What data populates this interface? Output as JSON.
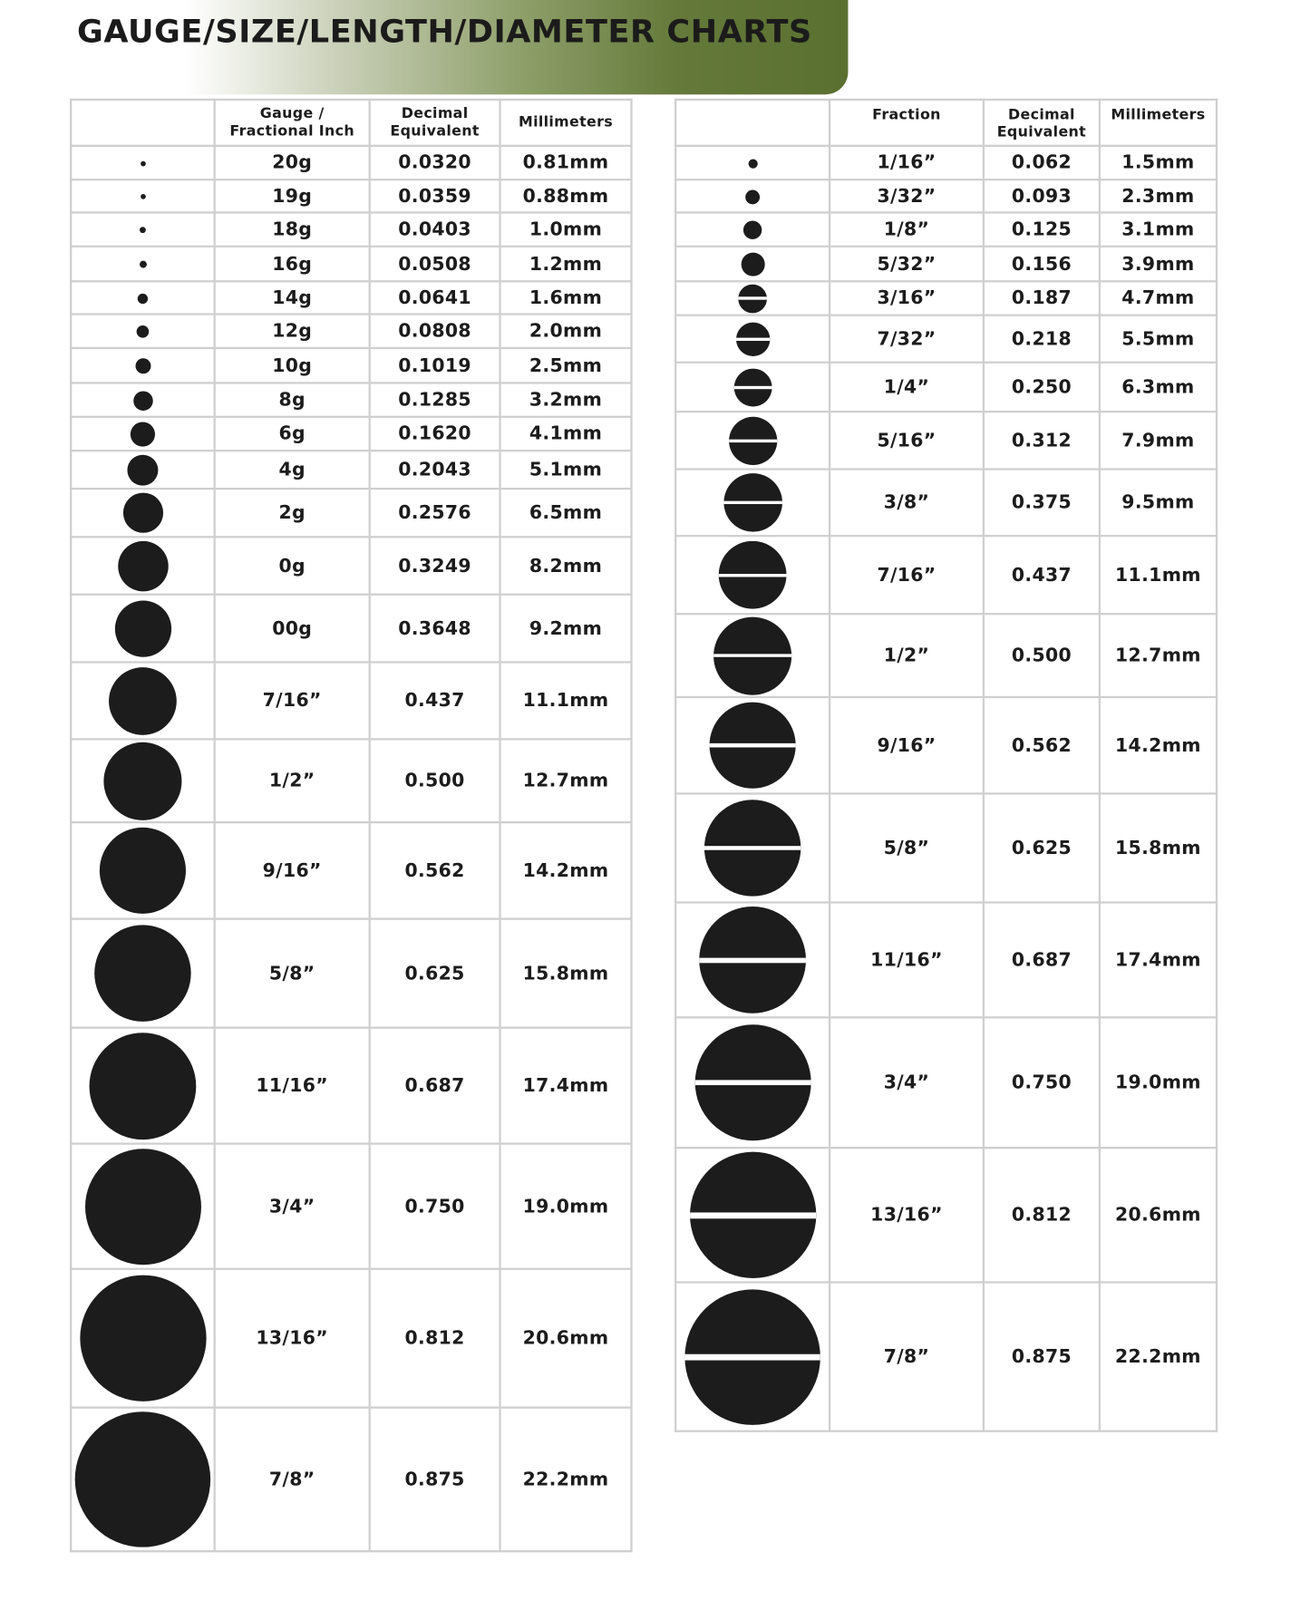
{
  "title": "GAUGE/SIZE/LENGTH/DIAMETER CHARTS",
  "colors": {
    "banner_green": "#5a7030",
    "circle": "#1c1c1c",
    "border": "#cfcfcf"
  },
  "left_table": {
    "headers": [
      "",
      "Gauge / Fractional Inch",
      "Decimal Equivalent",
      "Millimeters"
    ],
    "circle_icon": "solid-circle",
    "rows": [
      [
        "20g",
        "0.0320",
        "0.81mm"
      ],
      [
        "19g",
        "0.0359",
        "0.88mm"
      ],
      [
        "18g",
        "0.0403",
        "1.0mm"
      ],
      [
        "16g",
        "0.0508",
        "1.2mm"
      ],
      [
        "14g",
        "0.0641",
        "1.6mm"
      ],
      [
        "12g",
        "0.0808",
        "2.0mm"
      ],
      [
        "10g",
        "0.1019",
        "2.5mm"
      ],
      [
        "8g",
        "0.1285",
        "3.2mm"
      ],
      [
        "6g",
        "0.1620",
        "4.1mm"
      ],
      [
        "4g",
        "0.2043",
        "5.1mm"
      ],
      [
        "2g",
        "0.2576",
        "6.5mm"
      ],
      [
        "0g",
        "0.3249",
        "8.2mm"
      ],
      [
        "00g",
        "0.3648",
        "9.2mm"
      ],
      [
        "7/16”",
        "0.437",
        "11.1mm"
      ],
      [
        "1/2”",
        "0.500",
        "12.7mm"
      ],
      [
        "9/16”",
        "0.562",
        "14.2mm"
      ],
      [
        "5/8”",
        "0.625",
        "15.8mm"
      ],
      [
        "11/16”",
        "0.687",
        "17.4mm"
      ],
      [
        "3/4”",
        "0.750",
        "19.0mm"
      ],
      [
        "13/16”",
        "0.812",
        "20.6mm"
      ],
      [
        "7/8”",
        "0.875",
        "22.2mm"
      ]
    ]
  },
  "right_table": {
    "headers": [
      "",
      "Fraction",
      "Decimal Equivalent",
      "Millimeters"
    ],
    "circle_icon": "striped-circle",
    "rows": [
      [
        "1/16”",
        "0.062",
        "1.5mm"
      ],
      [
        "3/32”",
        "0.093",
        "2.3mm"
      ],
      [
        "1/8”",
        "0.125",
        "3.1mm"
      ],
      [
        "5/32”",
        "0.156",
        "3.9mm"
      ],
      [
        "3/16”",
        "0.187",
        "4.7mm"
      ],
      [
        "7/32”",
        "0.218",
        "5.5mm"
      ],
      [
        "1/4”",
        "0.250",
        "6.3mm"
      ],
      [
        "5/16”",
        "0.312",
        "7.9mm"
      ],
      [
        "3/8”",
        "0.375",
        "9.5mm"
      ],
      [
        "7/16”",
        "0.437",
        "11.1mm"
      ],
      [
        "1/2”",
        "0.500",
        "12.7mm"
      ],
      [
        "9/16”",
        "0.562",
        "14.2mm"
      ],
      [
        "5/8”",
        "0.625",
        "15.8mm"
      ],
      [
        "11/16”",
        "0.687",
        "17.4mm"
      ],
      [
        "3/4”",
        "0.750",
        "19.0mm"
      ],
      [
        "13/16”",
        "0.812",
        "20.6mm"
      ],
      [
        "7/8”",
        "0.875",
        "22.2mm"
      ]
    ]
  }
}
